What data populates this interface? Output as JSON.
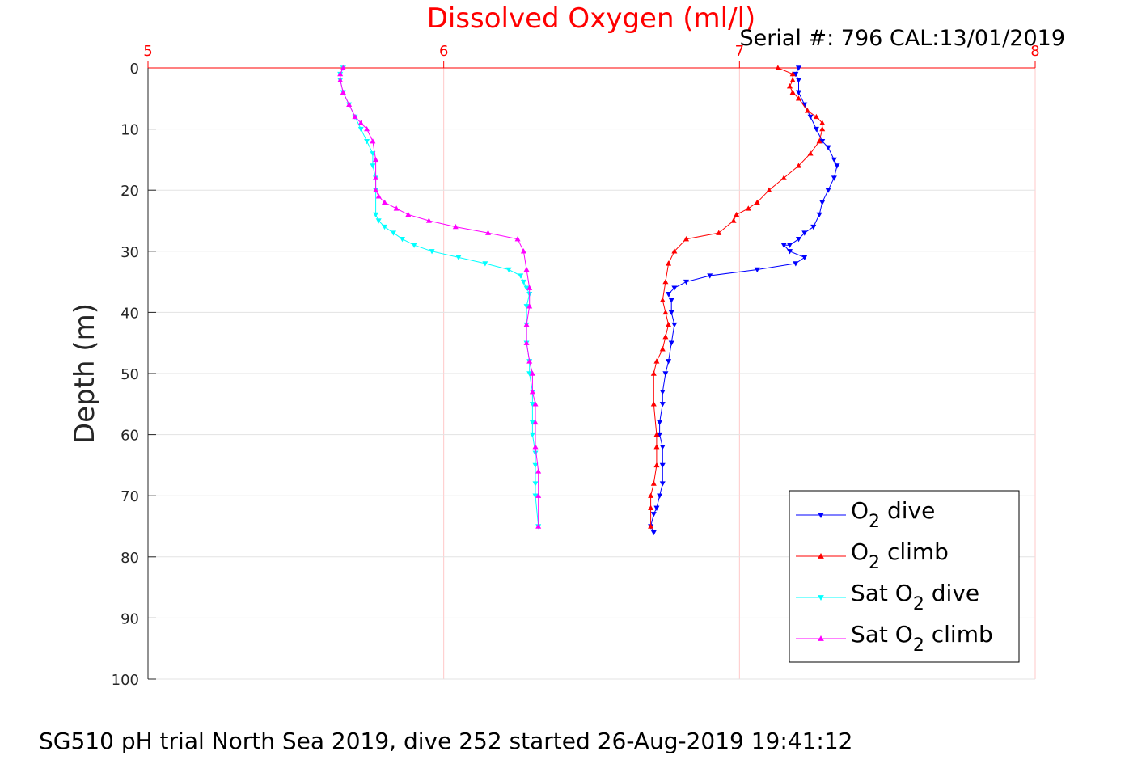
{
  "chart_data": {
    "type": "line",
    "title": "Dissolved Oxygen (ml/l)",
    "subtitle": "Serial #: 796  CAL:13/01/2019",
    "ylabel": "Depth (m)",
    "xlabel": "",
    "xlim": [
      5,
      8
    ],
    "ylim": [
      0,
      100
    ],
    "y_reversed": true,
    "x_axis_position": "top",
    "grid": true,
    "x_ticks": [
      "5",
      "6",
      "7",
      "8"
    ],
    "y_ticks": [
      "0",
      "10",
      "20",
      "30",
      "40",
      "50",
      "60",
      "70",
      "80",
      "90",
      "100"
    ],
    "legend_position": "bottom-right",
    "legend": [
      {
        "prefix": "O",
        "sub": "2",
        "suffix": " dive"
      },
      {
        "prefix": "O",
        "sub": "2",
        "suffix": " climb"
      },
      {
        "prefix": "Sat O",
        "sub": "2",
        "suffix": " dive"
      },
      {
        "prefix": "Sat O",
        "sub": "2",
        "suffix": " climb"
      }
    ],
    "series": [
      {
        "color": "#0000ff",
        "marker": "triangle-down",
        "x": [
          7.2,
          7.19,
          7.2,
          7.2,
          7.22,
          7.24,
          7.26,
          7.28,
          7.3,
          7.32,
          7.33,
          7.32,
          7.3,
          7.28,
          7.27,
          7.25,
          7.22,
          7.2,
          7.17,
          7.15,
          7.17,
          7.22,
          7.19,
          7.06,
          6.9,
          6.82,
          6.78,
          6.76,
          6.77,
          6.77,
          6.78,
          6.77,
          6.76,
          6.75,
          6.74,
          6.74,
          6.73,
          6.73,
          6.74,
          6.74,
          6.74,
          6.73,
          6.72,
          6.71,
          6.7,
          6.71
        ],
        "y": [
          0,
          1,
          2,
          4,
          6,
          8,
          10,
          12,
          13,
          15,
          16,
          18,
          20,
          22,
          24,
          26,
          27,
          28,
          29,
          29,
          30,
          31,
          32,
          33,
          34,
          35,
          36,
          37,
          38,
          40,
          42,
          45,
          48,
          50,
          53,
          55,
          58,
          60,
          62,
          65,
          68,
          70,
          72,
          73,
          75,
          76
        ]
      },
      {
        "color": "#ff0000",
        "marker": "triangle-up",
        "x": [
          7.13,
          7.18,
          7.18,
          7.17,
          7.18,
          7.2,
          7.23,
          7.26,
          7.28,
          7.28,
          7.27,
          7.24,
          7.2,
          7.15,
          7.1,
          7.06,
          7.03,
          6.99,
          6.98,
          6.93,
          6.82,
          6.78,
          6.76,
          6.75,
          6.74,
          6.75,
          6.76,
          6.75,
          6.74,
          6.72,
          6.71,
          6.71,
          6.72,
          6.72,
          6.72,
          6.71,
          6.7,
          6.7,
          6.7
        ],
        "y": [
          0,
          1,
          2,
          3,
          4,
          5,
          7,
          8,
          9,
          10,
          12,
          14,
          16,
          18,
          20,
          22,
          23,
          24,
          25,
          27,
          28,
          30,
          32,
          35,
          38,
          40,
          42,
          44,
          46,
          48,
          50,
          55,
          60,
          62,
          65,
          68,
          70,
          72,
          75
        ]
      },
      {
        "color": "#00ffff",
        "marker": "triangle-down",
        "x": [
          5.66,
          5.65,
          5.65,
          5.66,
          5.68,
          5.7,
          5.72,
          5.74,
          5.76,
          5.76,
          5.77,
          5.77,
          5.77,
          5.78,
          5.8,
          5.83,
          5.86,
          5.9,
          5.96,
          6.05,
          6.14,
          6.22,
          6.26,
          6.27,
          6.28,
          6.29,
          6.28,
          6.28,
          6.28,
          6.29,
          6.29,
          6.3,
          6.3,
          6.3,
          6.3,
          6.31,
          6.31,
          6.31,
          6.31,
          6.32
        ],
        "y": [
          0,
          1,
          2,
          4,
          6,
          8,
          10,
          12,
          14,
          16,
          18,
          20,
          24,
          25,
          26,
          27,
          28,
          29,
          30,
          31,
          32,
          33,
          34,
          35,
          36,
          37,
          39,
          42,
          45,
          48,
          50,
          53,
          55,
          58,
          60,
          63,
          65,
          68,
          70,
          75
        ]
      },
      {
        "color": "#ff00ff",
        "marker": "triangle-up",
        "x": [
          5.66,
          5.65,
          5.65,
          5.66,
          5.68,
          5.7,
          5.72,
          5.74,
          5.76,
          5.77,
          5.77,
          5.77,
          5.78,
          5.8,
          5.84,
          5.88,
          5.95,
          6.04,
          6.15,
          6.25,
          6.27,
          6.28,
          6.29,
          6.29,
          6.28,
          6.28,
          6.29,
          6.3,
          6.3,
          6.31,
          6.31,
          6.31,
          6.32,
          6.32,
          6.32
        ],
        "y": [
          0,
          1,
          2,
          4,
          6,
          8,
          9,
          10,
          12,
          15,
          18,
          20,
          21,
          22,
          23,
          24,
          25,
          26,
          27,
          28,
          30,
          33,
          36,
          39,
          42,
          45,
          48,
          50,
          53,
          55,
          58,
          62,
          66,
          70,
          75
        ]
      }
    ]
  },
  "footer": "SG510 pH trial North Sea 2019, dive 252 started 26-Aug-2019 19:41:12"
}
